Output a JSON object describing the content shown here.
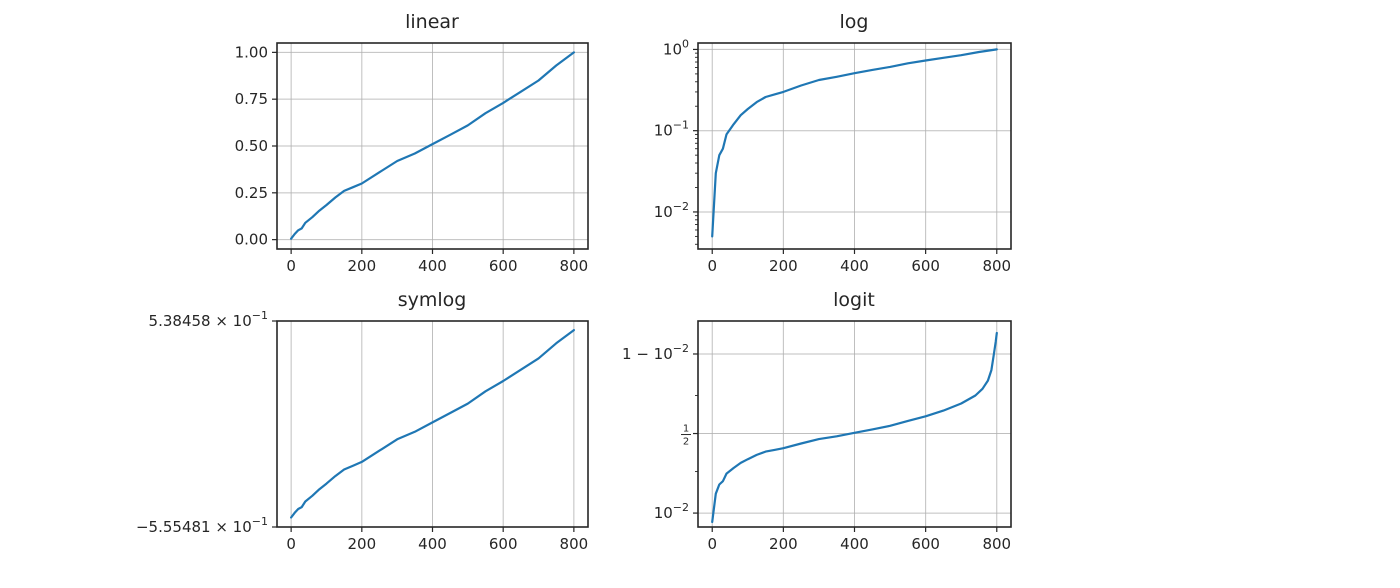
{
  "figure": {
    "background": "#ffffff",
    "line_color": "#1f77b4"
  },
  "chart_data": [
    {
      "type": "line",
      "title": "linear",
      "yscale": "linear",
      "xlabel": "",
      "ylabel": "",
      "grid": true,
      "xlim": [
        -40,
        840
      ],
      "ylim": [
        -0.05,
        1.05
      ],
      "xticks": [
        0,
        200,
        400,
        600,
        800
      ],
      "xtick_labels": [
        "0",
        "200",
        "400",
        "600",
        "800"
      ],
      "yticks": [
        0.0,
        0.25,
        0.5,
        0.75,
        1.0
      ],
      "ytick_labels": [
        "0.00",
        "0.25",
        "0.50",
        "0.75",
        "1.00"
      ],
      "x": [
        0,
        10,
        20,
        30,
        40,
        60,
        80,
        100,
        125,
        150,
        175,
        200,
        250,
        300,
        350,
        400,
        450,
        500,
        550,
        600,
        650,
        700,
        750,
        800
      ],
      "y": [
        0.005,
        0.03,
        0.05,
        0.06,
        0.09,
        0.12,
        0.155,
        0.185,
        0.225,
        0.26,
        0.28,
        0.3,
        0.36,
        0.42,
        0.46,
        0.51,
        0.56,
        0.61,
        0.675,
        0.73,
        0.79,
        0.85,
        0.93,
        1.0
      ]
    },
    {
      "type": "line",
      "title": "log",
      "yscale": "log",
      "xlabel": "",
      "ylabel": "",
      "grid": true,
      "xlim": [
        -40,
        840
      ],
      "ylim": [
        0.0035,
        1.2
      ],
      "xticks": [
        0,
        200,
        400,
        600,
        800
      ],
      "xtick_labels": [
        "0",
        "200",
        "400",
        "600",
        "800"
      ],
      "yticks": [
        0.01,
        0.1,
        1
      ],
      "ytick_labels": [
        {
          "base": "10",
          "exp": "−2"
        },
        {
          "base": "10",
          "exp": "−1"
        },
        {
          "base": "10",
          "exp": "0"
        }
      ],
      "x": [
        0,
        10,
        20,
        30,
        40,
        60,
        80,
        100,
        125,
        150,
        175,
        200,
        250,
        300,
        350,
        400,
        450,
        500,
        550,
        600,
        650,
        700,
        750,
        800
      ],
      "y": [
        0.005,
        0.03,
        0.05,
        0.06,
        0.09,
        0.12,
        0.155,
        0.185,
        0.225,
        0.26,
        0.28,
        0.3,
        0.36,
        0.42,
        0.46,
        0.51,
        0.56,
        0.61,
        0.675,
        0.73,
        0.79,
        0.85,
        0.93,
        1.0
      ]
    },
    {
      "type": "line",
      "title": "symlog",
      "yscale": "symlog",
      "xlabel": "",
      "ylabel": "",
      "grid": true,
      "grid_axis": "x",
      "xlim": [
        -40,
        840
      ],
      "ylim": [
        -0.555481,
        0.538458
      ],
      "xticks": [
        0,
        200,
        400,
        600,
        800
      ],
      "xtick_labels": [
        "0",
        "200",
        "400",
        "600",
        "800"
      ],
      "yticks": [
        -0.555481,
        0.538458
      ],
      "ytick_labels": [
        {
          "mant": "−5.55481",
          "base": "10",
          "exp": "−1"
        },
        {
          "mant": "5.38458",
          "base": "10",
          "exp": "−1"
        }
      ],
      "x": [
        0,
        10,
        20,
        30,
        40,
        60,
        80,
        100,
        125,
        150,
        175,
        200,
        250,
        300,
        350,
        400,
        450,
        500,
        550,
        600,
        650,
        700,
        750,
        800
      ],
      "y": [
        -0.505,
        -0.48,
        -0.46,
        -0.45,
        -0.42,
        -0.39,
        -0.355,
        -0.325,
        -0.285,
        -0.25,
        -0.23,
        -0.21,
        -0.15,
        -0.09,
        -0.05,
        0.0,
        0.05,
        0.1,
        0.165,
        0.22,
        0.28,
        0.34,
        0.42,
        0.49
      ]
    },
    {
      "type": "line",
      "title": "logit",
      "yscale": "logit",
      "xlabel": "",
      "ylabel": "",
      "grid": true,
      "xlim": [
        -40,
        840
      ],
      "ylim": [
        0.0045,
        0.9985
      ],
      "xticks": [
        0,
        200,
        400,
        600,
        800
      ],
      "xtick_labels": [
        "0",
        "200",
        "400",
        "600",
        "800"
      ],
      "yticks": [
        0.01,
        0.5,
        0.99
      ],
      "ytick_labels": [
        {
          "base": "10",
          "exp": "−2"
        },
        {
          "frac_num": "1",
          "frac_den": "2"
        },
        {
          "prefix": "1 − ",
          "base": "10",
          "exp": "−2"
        }
      ],
      "x": [
        0,
        10,
        20,
        30,
        40,
        60,
        80,
        100,
        125,
        150,
        175,
        200,
        250,
        300,
        350,
        400,
        450,
        500,
        550,
        600,
        650,
        700,
        740,
        760,
        775,
        785,
        792,
        797,
        800
      ],
      "y": [
        0.006,
        0.03,
        0.05,
        0.06,
        0.09,
        0.12,
        0.155,
        0.185,
        0.225,
        0.26,
        0.28,
        0.3,
        0.36,
        0.42,
        0.46,
        0.51,
        0.56,
        0.61,
        0.675,
        0.73,
        0.79,
        0.85,
        0.9,
        0.93,
        0.955,
        0.975,
        0.99,
        0.995,
        0.997
      ]
    }
  ]
}
